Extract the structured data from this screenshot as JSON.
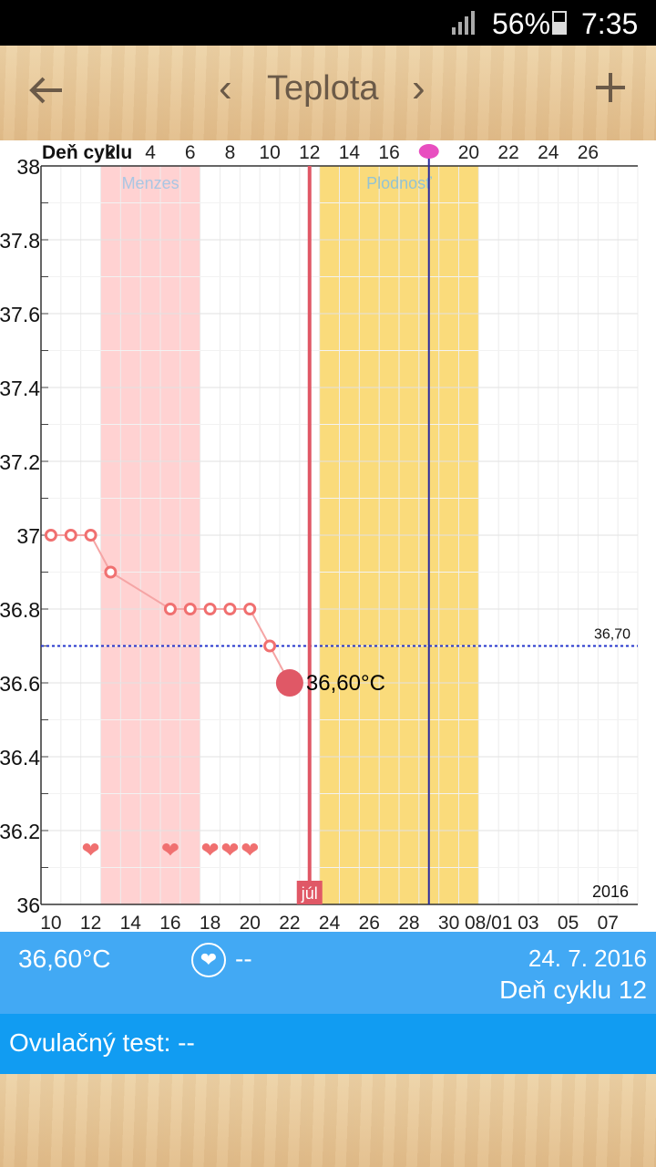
{
  "status": {
    "battery": "56%",
    "time": "7:35"
  },
  "toolbar": {
    "title": "Teplota",
    "back_icon": "arrow-left-icon",
    "prev_icon": "chevron-left-icon",
    "next_icon": "chevron-right-icon",
    "add_icon": "plus-icon"
  },
  "chart_data": {
    "type": "line",
    "top_axis_label": "Deň cyklu",
    "top_ticks": [
      "2",
      "4",
      "6",
      "8",
      "10",
      "12",
      "14",
      "16",
      "",
      "20",
      "22",
      "24",
      "26"
    ],
    "bottom_ticks": [
      "10",
      "12",
      "14",
      "16",
      "18",
      "20",
      "22",
      "24",
      "26",
      "28",
      "30",
      "08/01",
      "03",
      "05",
      "07"
    ],
    "y_ticks": [
      "38",
      "37.8",
      "37.6",
      "37.4",
      "37.2",
      "37",
      "36.8",
      "36.6",
      "36.4",
      "36.2",
      "36"
    ],
    "ylim": [
      36,
      38
    ],
    "cycle_day_range": [
      -1,
      28
    ],
    "bands": [
      {
        "label": "Menzes",
        "from": 2,
        "to": 6,
        "color": "#ffd2d2",
        "text_color": "#a9c6e3"
      },
      {
        "label": "Plodnosť",
        "from": 13,
        "to": 20,
        "color": "#fadb7b",
        "text_color": "#93c3d4"
      }
    ],
    "ovulation_day": 18,
    "selected_day": 12,
    "selected_label": "36,60°C",
    "month_label": "júl",
    "year_label": "2016",
    "coverline": {
      "value": 36.7,
      "label": "36,70"
    },
    "series": [
      {
        "x": [
          -1,
          0,
          1,
          2,
          5,
          6,
          7,
          8,
          9,
          10,
          11
        ],
        "y": [
          37.0,
          37.0,
          37.0,
          36.9,
          36.8,
          36.8,
          36.8,
          36.8,
          36.8,
          36.7,
          36.6
        ]
      }
    ],
    "heart_days": [
      1,
      5,
      7,
      8,
      9
    ]
  },
  "info": {
    "temperature": "36,60°C",
    "heart_value": "--",
    "date": "24. 7. 2016",
    "cycle_day": "Deň cyklu 12"
  },
  "ovulation": {
    "label": "Ovulačný test: --"
  },
  "colors": {
    "period": "#ffd2d2",
    "fertile": "#fadb7b",
    "line": "#f08080",
    "marker": "#e05866",
    "info_bar": "#42a9f4",
    "ovul_bar": "#119cf2"
  }
}
